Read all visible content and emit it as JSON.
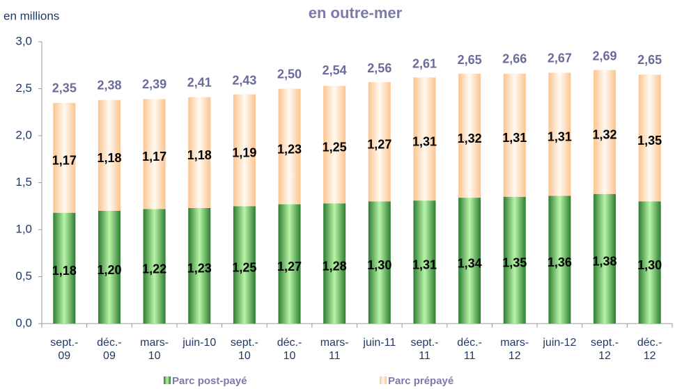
{
  "chart_data": {
    "type": "stacked-bar",
    "title": "en outre-mer",
    "y_axis_label": "en millions",
    "categories": [
      "sept.-\n09",
      "déc.-\n09",
      "mars-\n10",
      "juin-10",
      "sept.-\n10",
      "déc.-\n10",
      "mars-\n11",
      "juin-11",
      "sept.-\n11",
      "déc.-\n11",
      "mars-\n12",
      "juin-12",
      "sept.-\n12",
      "déc.-\n12"
    ],
    "series": [
      {
        "name": "Parc post-payé",
        "color": "#4caf50",
        "values": [
          1.18,
          1.2,
          1.22,
          1.23,
          1.25,
          1.27,
          1.28,
          1.3,
          1.31,
          1.34,
          1.35,
          1.36,
          1.38,
          1.3
        ],
        "value_labels": [
          "1,18",
          "1,20",
          "1,22",
          "1,23",
          "1,25",
          "1,27",
          "1,28",
          "1,30",
          "1,31",
          "1,34",
          "1,35",
          "1,36",
          "1,38",
          "1,30"
        ]
      },
      {
        "name": "Parc prépayé",
        "color": "#fdd3ad",
        "values": [
          1.17,
          1.18,
          1.17,
          1.18,
          1.19,
          1.23,
          1.25,
          1.27,
          1.31,
          1.32,
          1.31,
          1.31,
          1.32,
          1.35
        ],
        "value_labels": [
          "1,17",
          "1,18",
          "1,17",
          "1,18",
          "1,19",
          "1,23",
          "1,25",
          "1,27",
          "1,31",
          "1,32",
          "1,31",
          "1,31",
          "1,32",
          "1,35"
        ]
      }
    ],
    "totals": {
      "values": [
        2.35,
        2.38,
        2.39,
        2.41,
        2.43,
        2.5,
        2.54,
        2.56,
        2.61,
        2.65,
        2.66,
        2.67,
        2.69,
        2.65
      ],
      "value_labels": [
        "2,35",
        "2,38",
        "2,39",
        "2,41",
        "2,43",
        "2,50",
        "2,54",
        "2,56",
        "2,61",
        "2,65",
        "2,66",
        "2,67",
        "2,69",
        "2,65"
      ]
    },
    "ylim": [
      0,
      3
    ],
    "yticks": [
      {
        "value": 0,
        "label": "0,0"
      },
      {
        "value": 0.5,
        "label": "0,5"
      },
      {
        "value": 1,
        "label": "1,0"
      },
      {
        "value": 1.5,
        "label": "1,5"
      },
      {
        "value": 2,
        "label": "2,0"
      },
      {
        "value": 2.5,
        "label": "2,5"
      },
      {
        "value": 3,
        "label": "3,0"
      }
    ],
    "grid": false
  }
}
